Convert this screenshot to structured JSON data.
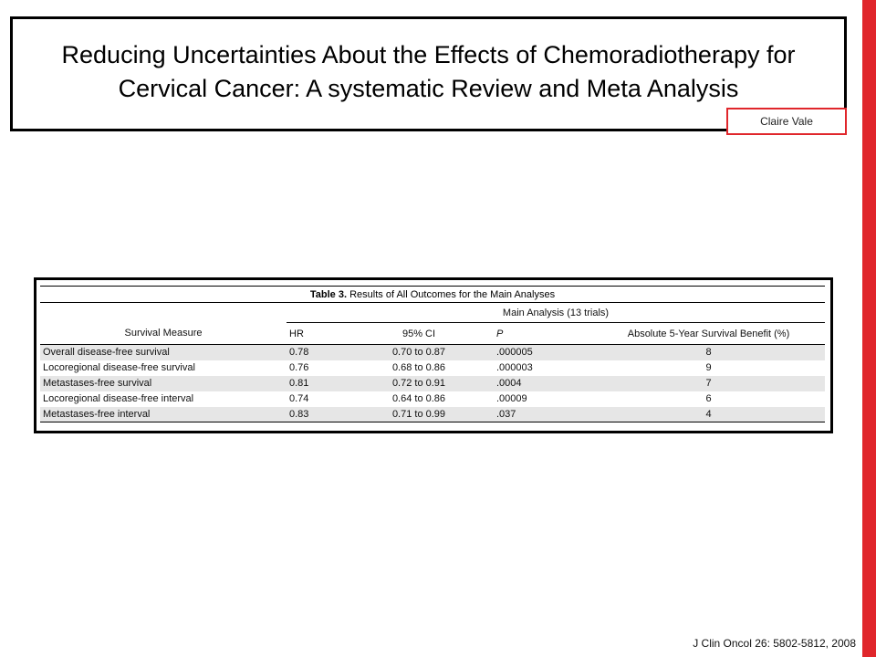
{
  "slide": {
    "title": "Reducing Uncertainties About the Effects of Chemoradiotherapy for Cervical Cancer: A systematic Review and Meta Analysis",
    "author": "Claire Vale",
    "citation": "J Clin Oncol 26: 5802-5812, 2008",
    "accent_color": "#e0262b"
  },
  "table": {
    "caption_bold": "Table 3.",
    "caption_text": "Results of All Outcomes for the Main Analyses",
    "group_header": "Main Analysis (13 trials)",
    "columns": {
      "measure": "Survival Measure",
      "hr": "HR",
      "ci": "95% CI",
      "p": "P",
      "benefit": "Absolute 5-Year Survival Benefit (%)"
    },
    "rows": [
      {
        "measure": "Overall disease-free survival",
        "hr": "0.78",
        "ci": "0.70 to 0.87",
        "p": ".000005",
        "benefit": "8"
      },
      {
        "measure": "Locoregional disease-free survival",
        "hr": "0.76",
        "ci": "0.68 to 0.86",
        "p": ".000003",
        "benefit": "9"
      },
      {
        "measure": "Metastases-free survival",
        "hr": "0.81",
        "ci": "0.72 to 0.91",
        "p": ".0004",
        "benefit": "7"
      },
      {
        "measure": "Locoregional disease-free interval",
        "hr": "0.74",
        "ci": "0.64 to 0.86",
        "p": ".00009",
        "benefit": "6"
      },
      {
        "measure": "Metastases-free interval",
        "hr": "0.83",
        "ci": "0.71 to 0.99",
        "p": ".037",
        "benefit": "4"
      }
    ]
  }
}
